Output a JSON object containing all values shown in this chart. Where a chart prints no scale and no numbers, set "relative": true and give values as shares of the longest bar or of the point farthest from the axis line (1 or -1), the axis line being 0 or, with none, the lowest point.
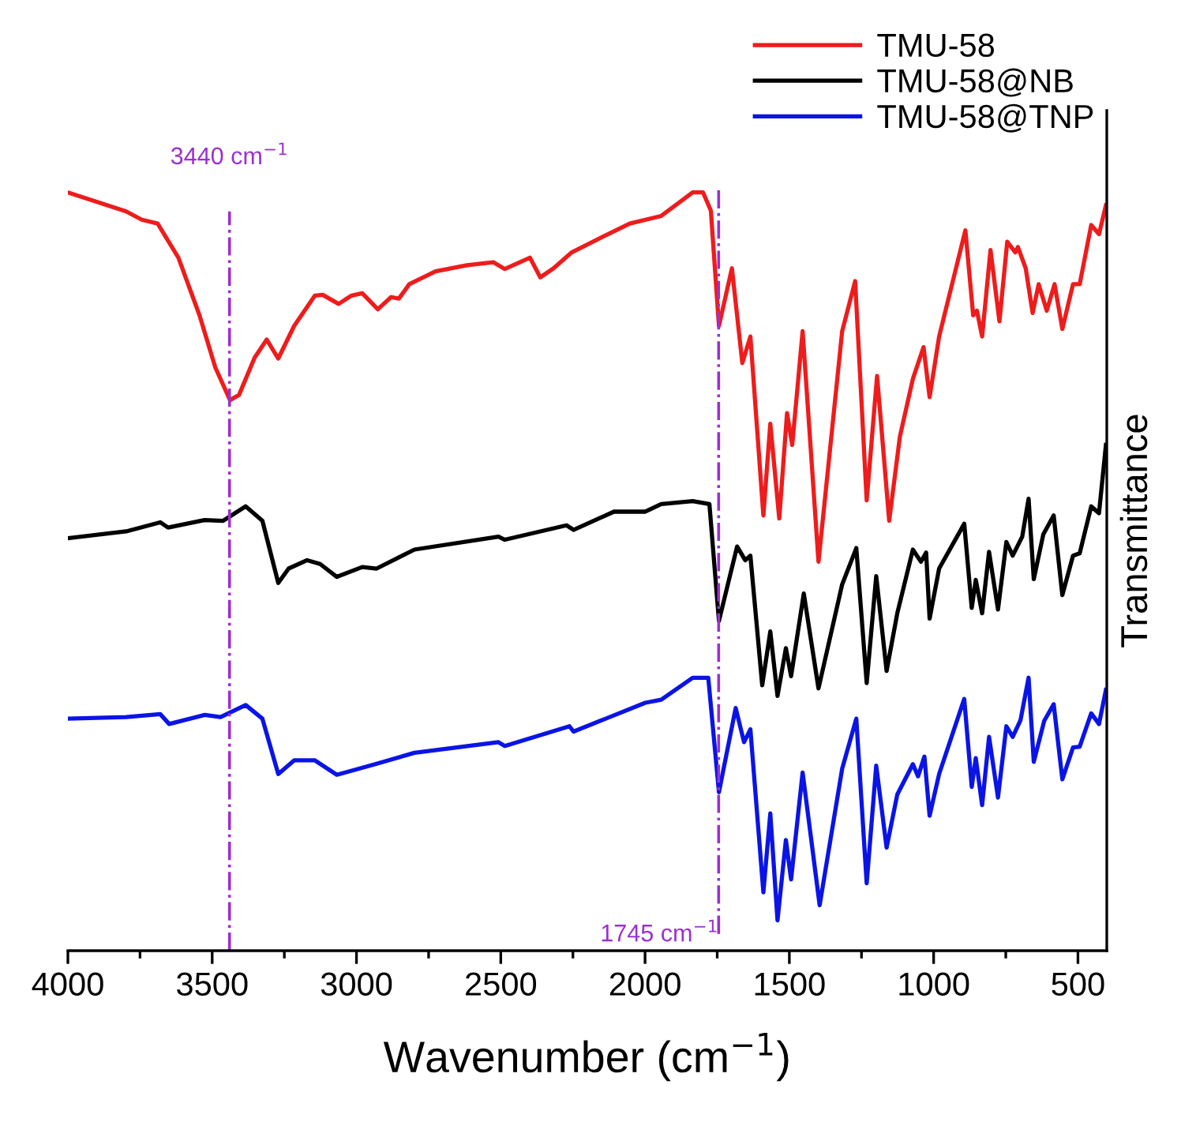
{
  "chart_data": {
    "type": "line",
    "relative": true,
    "xlabel": "Wavenumber (cm$^{−1}$)",
    "ylabel": "Transmittance",
    "legend": "top right",
    "grid": false,
    "marker": "none",
    "line_style": "solid",
    "tick_labels": "x",
    "xlim": [
      4000,
      400
    ],
    "xticks": [
      4000,
      {
        "value": 3750,
        "label": null
      },
      3500,
      {
        "value": 3250,
        "label": null
      },
      3000,
      {
        "value": 2750,
        "label": null
      },
      2500,
      {
        "value": 2250,
        "label": null
      },
      2000,
      {
        "value": 1750,
        "label": null
      },
      1500,
      {
        "value": 1250,
        "label": null
      },
      1000,
      {
        "value": 750,
        "label": null
      },
      500
    ],
    "ref_lines": [
      {
        "axis": "x",
        "value": 3440,
        "label": "3440 cm$^{−1}$",
        "color": "#9b30d0",
        "line_style": "dashdot"
      },
      {
        "axis": "x",
        "value": 1745,
        "label": "1745 cm$^{−1}$",
        "color": "#9b30d0",
        "line_style": "dashdot"
      }
    ],
    "series": [
      {
        "name": "TMU-58",
        "color": "#ee1c1c",
        "x": [
          4000,
          3798,
          3744,
          3689,
          3617,
          3544,
          3489,
          3438,
          3407,
          3353,
          3311,
          3271,
          3216,
          3144,
          3117,
          3062,
          3017,
          2980,
          2926,
          2880,
          2853,
          2817,
          2726,
          2617,
          2526,
          2486,
          2399,
          2363,
          2317,
          2254,
          2144,
          2053,
          1944,
          1835,
          1799,
          1772,
          1744,
          1699,
          1663,
          1635,
          1590,
          1566,
          1535,
          1508,
          1490,
          1454,
          1399,
          1317,
          1272,
          1232,
          1196,
          1154,
          1117,
          1072,
          1035,
          1014,
          981,
          890,
          863,
          850,
          832,
          803,
          772,
          745,
          717,
          708,
          681,
          657,
          636,
          608,
          581,
          554,
          517,
          494,
          454,
          427,
          403
        ],
        "values": [
          1,
          0.975,
          0.964,
          0.959,
          0.914,
          0.838,
          0.769,
          0.726,
          0.733,
          0.782,
          0.806,
          0.781,
          0.824,
          0.864,
          0.865,
          0.853,
          0.864,
          0.867,
          0.846,
          0.862,
          0.86,
          0.879,
          0.896,
          0.904,
          0.908,
          0.899,
          0.914,
          0.888,
          0.9,
          0.921,
          0.942,
          0.959,
          0.969,
          1,
          1,
          0.976,
          0.824,
          0.9,
          0.775,
          0.81,
          0.574,
          0.695,
          0.57,
          0.709,
          0.667,
          0.817,
          0.513,
          0.817,
          0.883,
          0.594,
          0.758,
          0.567,
          0.678,
          0.754,
          0.796,
          0.73,
          0.81,
          0.95,
          0.838,
          0.844,
          0.81,
          0.924,
          0.83,
          0.935,
          0.921,
          0.928,
          0.9,
          0.841,
          0.879,
          0.844,
          0.879,
          0.82,
          0.879,
          0.879,
          0.957,
          0.945,
          0.983
        ]
      },
      {
        "name": "TMU-58@NB",
        "color": "#000000",
        "x": [
          4000,
          3798,
          3680,
          3653,
          3526,
          3462,
          3384,
          3326,
          3271,
          3235,
          3171,
          3126,
          3068,
          2980,
          2930,
          2799,
          2508,
          2486,
          2272,
          2248,
          2108,
          1999,
          1944,
          1835,
          1777,
          1744,
          1681,
          1653,
          1635,
          1594,
          1566,
          1541,
          1512,
          1494,
          1450,
          1399,
          1317,
          1268,
          1232,
          1199,
          1163,
          1126,
          1072,
          1044,
          1026,
          1014,
          981,
          894,
          868,
          854,
          832,
          808,
          777,
          748,
          726,
          693,
          671,
          653,
          620,
          584,
          554,
          517,
          494,
          454,
          427,
          403
        ],
        "values": [
          0.544,
          0.553,
          0.565,
          0.558,
          0.568,
          0.567,
          0.586,
          0.567,
          0.485,
          0.504,
          0.515,
          0.51,
          0.493,
          0.506,
          0.504,
          0.529,
          0.546,
          0.542,
          0.561,
          0.555,
          0.579,
          0.579,
          0.589,
          0.593,
          0.589,
          0.435,
          0.533,
          0.515,
          0.521,
          0.35,
          0.421,
          0.336,
          0.399,
          0.362,
          0.471,
          0.346,
          0.483,
          0.531,
          0.353,
          0.494,
          0.369,
          0.445,
          0.529,
          0.513,
          0.525,
          0.438,
          0.504,
          0.563,
          0.452,
          0.489,
          0.445,
          0.526,
          0.45,
          0.539,
          0.521,
          0.546,
          0.596,
          0.49,
          0.549,
          0.574,
          0.469,
          0.521,
          0.524,
          0.586,
          0.577,
          0.667
        ]
      },
      {
        "name": "TMU-58@TNP",
        "color": "#0a14e6",
        "x": [
          4000,
          3798,
          3680,
          3649,
          3526,
          3471,
          3384,
          3326,
          3271,
          3216,
          3144,
          3068,
          2935,
          2799,
          2508,
          2486,
          2262,
          2248,
          1999,
          1944,
          1835,
          1781,
          1744,
          1686,
          1657,
          1635,
          1590,
          1566,
          1541,
          1512,
          1494,
          1454,
          1395,
          1317,
          1268,
          1232,
          1199,
          1163,
          1126,
          1072,
          1054,
          1032,
          1014,
          981,
          894,
          868,
          854,
          832,
          808,
          777,
          748,
          726,
          699,
          671,
          653,
          617,
          584,
          554,
          517,
          494,
          454,
          427,
          403
        ],
        "values": [
          0.306,
          0.308,
          0.312,
          0.299,
          0.311,
          0.308,
          0.324,
          0.306,
          0.233,
          0.251,
          0.251,
          0.232,
          0.246,
          0.261,
          0.275,
          0.27,
          0.296,
          0.289,
          0.327,
          0.331,
          0.36,
          0.36,
          0.209,
          0.32,
          0.275,
          0.292,
          0.077,
          0.181,
          0.04,
          0.146,
          0.094,
          0.235,
          0.06,
          0.24,
          0.306,
          0.089,
          0.244,
          0.136,
          0.206,
          0.246,
          0.23,
          0.256,
          0.178,
          0.233,
          0.332,
          0.216,
          0.254,
          0.192,
          0.282,
          0.202,
          0.296,
          0.282,
          0.304,
          0.36,
          0.249,
          0.303,
          0.325,
          0.226,
          0.268,
          0.269,
          0.313,
          0.299,
          0.344
        ]
      }
    ]
  }
}
